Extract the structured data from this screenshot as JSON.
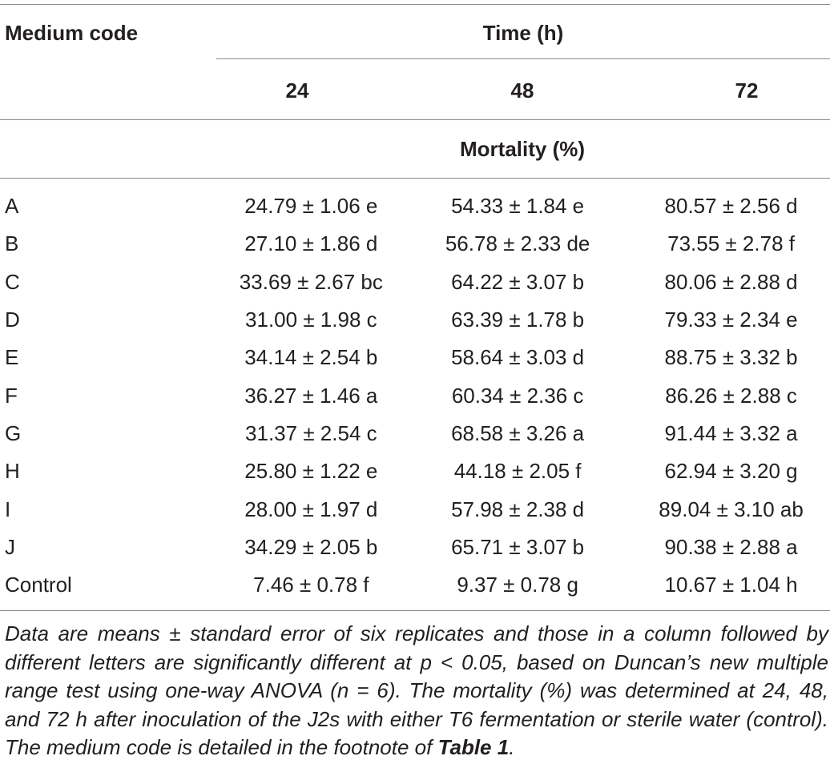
{
  "header": {
    "medium_code_label": "Medium code",
    "time_label": "Time (h)",
    "time_columns": [
      "24",
      "48",
      "72"
    ],
    "subheader_label": "Mortality (%)"
  },
  "rows": [
    {
      "code": "A",
      "h24": "24.79 ± 1.06 e",
      "h48": "54.33 ± 1.84 e",
      "h72": "80.57 ± 2.56 d"
    },
    {
      "code": "B",
      "h24": "27.10 ± 1.86 d",
      "h48": "56.78 ± 2.33 de",
      "h72": "73.55 ± 2.78 f"
    },
    {
      "code": "C",
      "h24": "33.69 ± 2.67 bc",
      "h48": "64.22 ± 3.07 b",
      "h72": "80.06 ± 2.88 d"
    },
    {
      "code": "D",
      "h24": "31.00 ± 1.98 c",
      "h48": "63.39 ± 1.78 b",
      "h72": "79.33 ± 2.34 e"
    },
    {
      "code": "E",
      "h24": "34.14 ± 2.54 b",
      "h48": "58.64 ± 3.03 d",
      "h72": "88.75 ± 3.32 b"
    },
    {
      "code": "F",
      "h24": "36.27 ± 1.46 a",
      "h48": "60.34 ± 2.36 c",
      "h72": "86.26 ± 2.88 c"
    },
    {
      "code": "G",
      "h24": "31.37 ± 2.54 c",
      "h48": "68.58 ± 3.26 a",
      "h72": "91.44 ± 3.32 a"
    },
    {
      "code": "H",
      "h24": "25.80 ± 1.22 e",
      "h48": "44.18 ± 2.05 f",
      "h72": "62.94 ± 3.20 g"
    },
    {
      "code": "I",
      "h24": "28.00 ± 1.97 d",
      "h48": "57.98 ± 2.38 d",
      "h72": "89.04 ± 3.10 ab"
    },
    {
      "code": "J",
      "h24": "34.29 ± 2.05 b",
      "h48": "65.71 ± 3.07 b",
      "h72": "90.38 ± 2.88 a"
    },
    {
      "code": "Control",
      "h24": "7.46 ± 0.78 f",
      "h48": "9.37 ± 0.78 g",
      "h72": "10.67 ± 1.04 h"
    }
  ],
  "footnote": {
    "text": "Data are means ± standard error of six replicates and those in a column followed by different letters are significantly different at p < 0.05, based on Duncan’s new multiple range test using one-way ANOVA (n = 6). The mortality (%) was determined at 24, 48, and 72 h after inoculation of the J2s with either T6 fermentation or sterile water (control). The medium code is detailed in the footnote of ",
    "ref": "Table 1",
    "end": "."
  }
}
